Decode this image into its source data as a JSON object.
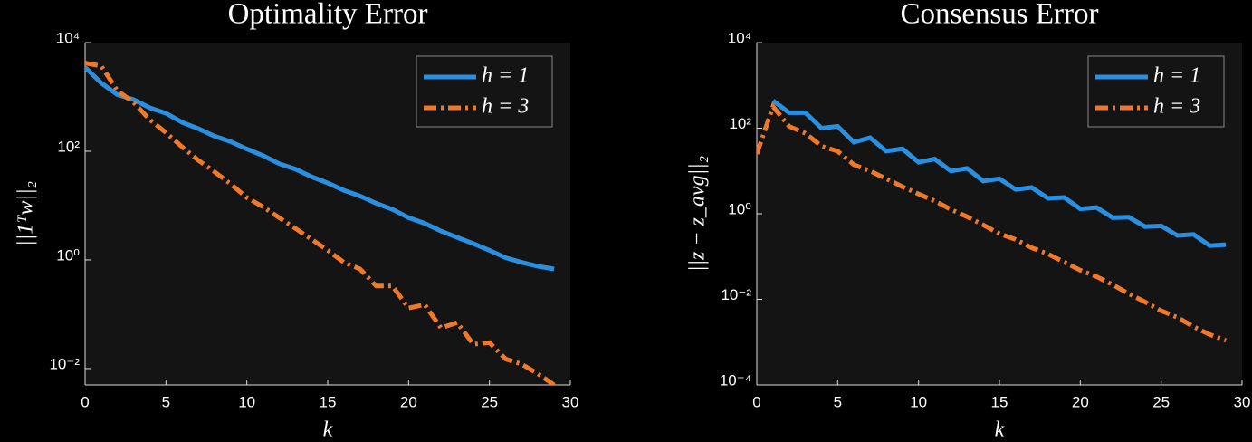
{
  "chart_data": [
    {
      "type": "line",
      "title": "Optimality Error",
      "xlabel": "k",
      "ylabel": "||1ᵀw||₂",
      "x": [
        0,
        1,
        2,
        3,
        4,
        5,
        6,
        7,
        8,
        9,
        10,
        11,
        12,
        13,
        14,
        15,
        16,
        17,
        18,
        19,
        20,
        21,
        22,
        23,
        24,
        25,
        26,
        27,
        28,
        29
      ],
      "series": [
        {
          "name": "h = 1",
          "color": "#2b8fe0",
          "dash": "solid",
          "values": [
            3500,
            1800,
            1100,
            890,
            630,
            500,
            340,
            260,
            190,
            150,
            110,
            83,
            59,
            47,
            34,
            26,
            19,
            15,
            11,
            8.5,
            6,
            4.7,
            3.4,
            2.6,
            2,
            1.5,
            1.1,
            0.9,
            0.76,
            0.68
          ]
        },
        {
          "name": "h = 3",
          "color": "#f0782a",
          "dash": "dashdot",
          "values": [
            4200,
            3700,
            1300,
            790,
            380,
            220,
            120,
            68,
            42,
            25,
            14,
            9.5,
            6,
            3.8,
            2.4,
            1.5,
            0.9,
            0.68,
            0.33,
            0.33,
            0.13,
            0.15,
            0.056,
            0.07,
            0.028,
            0.03,
            0.015,
            0.012,
            0.008,
            0.005
          ]
        }
      ],
      "xlim": [
        0,
        30
      ],
      "xticks": [
        0,
        5,
        10,
        15,
        20,
        25,
        30
      ],
      "ylim": [
        0.005,
        10000
      ],
      "log_y": true,
      "yticks": [
        {
          "value": 10000,
          "label": "10⁴"
        },
        {
          "value": 100,
          "label": "10²"
        },
        {
          "value": 1,
          "label": "10⁰"
        },
        {
          "value": 0.01,
          "label": "10⁻²"
        }
      ],
      "legend": "upper right"
    },
    {
      "type": "line",
      "title": "Consensus Error",
      "xlabel": "k",
      "ylabel": "||z − z_avg||₂",
      "x": [
        0,
        1,
        2,
        3,
        4,
        5,
        6,
        7,
        8,
        9,
        10,
        11,
        12,
        13,
        14,
        15,
        16,
        17,
        18,
        19,
        20,
        21,
        22,
        23,
        24,
        25,
        26,
        27,
        28,
        29
      ],
      "series": [
        {
          "name": "h = 1",
          "color": "#2b8fe0",
          "dash": "solid",
          "values": [
            null,
            440,
            230,
            230,
            100,
            110,
            47,
            60,
            29,
            33,
            16,
            19,
            10,
            11.5,
            5.8,
            6.6,
            3.7,
            4.1,
            2.3,
            2.4,
            1.3,
            1.4,
            0.81,
            0.83,
            0.5,
            0.52,
            0.31,
            0.33,
            0.18,
            0.19
          ]
        },
        {
          "name": "h = 3",
          "color": "#f0782a",
          "dash": "dashdot",
          "values": [
            25,
            320,
            110,
            76,
            38,
            29,
            14,
            10,
            6.6,
            4.3,
            2.9,
            2,
            1.26,
            0.85,
            0.55,
            0.34,
            0.25,
            0.16,
            0.115,
            0.074,
            0.048,
            0.034,
            0.022,
            0.0135,
            0.0087,
            0.0054,
            0.0038,
            0.0023,
            0.0015,
            0.0011
          ]
        }
      ],
      "xlim": [
        0,
        30
      ],
      "xticks": [
        0,
        5,
        10,
        15,
        20,
        25,
        30
      ],
      "ylim": [
        0.0001,
        10000
      ],
      "log_y": true,
      "yticks": [
        {
          "value": 10000,
          "label": "10⁴"
        },
        {
          "value": 100,
          "label": "10²"
        },
        {
          "value": 1,
          "label": "10⁰"
        },
        {
          "value": 0.01,
          "label": "10⁻²"
        },
        {
          "value": 0.0001,
          "label": "10⁻⁴"
        }
      ],
      "legend": "upper right"
    }
  ]
}
